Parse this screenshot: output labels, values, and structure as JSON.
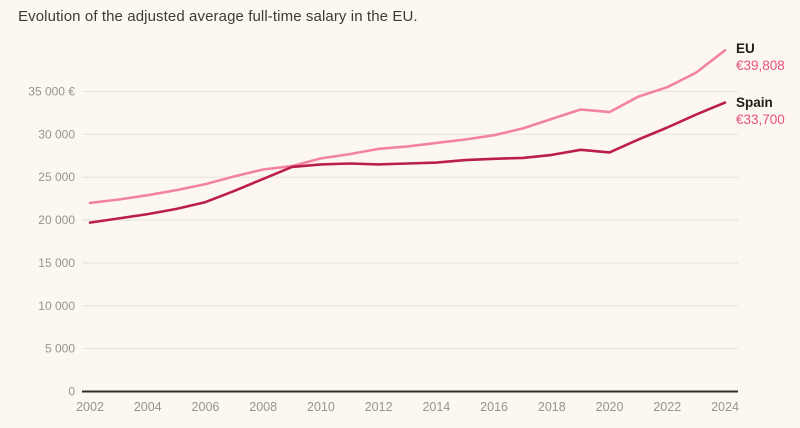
{
  "title": "Evolution of the adjusted average full-time salary in the EU.",
  "colors": {
    "background": "#fcf8f0",
    "eu_line": "#f2849f",
    "spain_line": "#bb1e4d",
    "value_text": "#e9517c",
    "series_label_text": "#1d1d1b",
    "grid": "#eae6dd",
    "baseline": "#2e2d2b",
    "axis_text": "#98948c",
    "title_text": "#3b3b38"
  },
  "legend": {
    "eu": {
      "label": "EU",
      "value": "€39,808"
    },
    "spain": {
      "label": "Spain",
      "value": "€33,700"
    }
  },
  "chart_data": {
    "type": "line",
    "title": "Evolution of the adjusted average full-time salary in the EU.",
    "xlabel": "",
    "ylabel": "",
    "x": [
      2002,
      2003,
      2004,
      2005,
      2006,
      2007,
      2008,
      2009,
      2010,
      2011,
      2012,
      2013,
      2014,
      2015,
      2016,
      2017,
      2018,
      2019,
      2020,
      2021,
      2022,
      2023,
      2024
    ],
    "series": [
      {
        "name": "EU",
        "color_key": "eu_line",
        "end_label": "EU",
        "end_value_label": "€39,808",
        "values": [
          22000,
          22400,
          22900,
          23500,
          24200,
          25100,
          25900,
          26300,
          27200,
          27700,
          28300,
          28600,
          29000,
          29400,
          29900,
          30700,
          31800,
          32900,
          32600,
          34400,
          35500,
          37200,
          39808
        ]
      },
      {
        "name": "Spain",
        "color_key": "spain_line",
        "end_label": "Spain",
        "end_value_label": "€33,700",
        "values": [
          19700,
          20200,
          20700,
          21300,
          22100,
          23400,
          24800,
          26200,
          26500,
          26600,
          26500,
          26600,
          26700,
          27000,
          27150,
          27250,
          27600,
          28200,
          27900,
          29400,
          30800,
          32300,
          33700
        ]
      }
    ],
    "xlim": [
      2002,
      2024
    ],
    "ylim": [
      0,
      41000
    ],
    "x_ticks": [
      2002,
      2004,
      2006,
      2008,
      2010,
      2012,
      2014,
      2016,
      2018,
      2020,
      2022,
      2024
    ],
    "y_ticks": [
      0,
      5000,
      10000,
      15000,
      20000,
      25000,
      30000,
      35000
    ],
    "y_tick_labels": [
      "0",
      "5 000",
      "10 000",
      "15 000",
      "20 000",
      "25 000",
      "30 000",
      "35 000 €"
    ],
    "grid": "horizontal",
    "legend_position": "right-of-line-ends",
    "currency": "EUR"
  }
}
